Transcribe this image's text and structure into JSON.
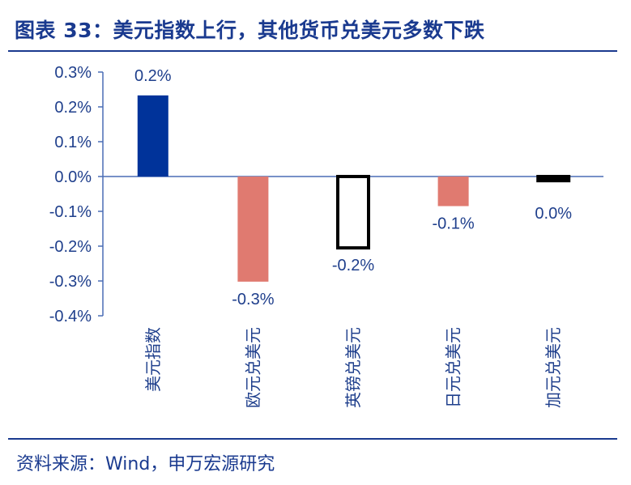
{
  "title": "图表 33：美元指数上行，其他货币兑美元多数下跌",
  "source": "资料来源：Wind，申万宏源研究",
  "chart_data": {
    "type": "bar",
    "title": "图表 33：美元指数上行，其他货币兑美元多数下跌",
    "categories": [
      "美元指数",
      "欧元兑美元",
      "英镑兑美元",
      "日元兑美元",
      "加元兑美元"
    ],
    "values": [
      0.233,
      -0.302,
      -0.205,
      -0.085,
      -0.012
    ],
    "data_labels": [
      "0.2%",
      "-0.3%",
      "-0.2%",
      "-0.1%",
      "0.0%"
    ],
    "bar_styles": [
      {
        "fill": "#00339a",
        "stroke": "none"
      },
      {
        "fill": "#e07a70",
        "stroke": "none"
      },
      {
        "fill": "#ffffff",
        "stroke": "#000000"
      },
      {
        "fill": "#e07a70",
        "stroke": "none"
      },
      {
        "fill": "#000000",
        "stroke": "#000000"
      }
    ],
    "ylim": [
      -0.4,
      0.3
    ],
    "yticks": [
      0.3,
      0.2,
      0.1,
      0.0,
      -0.1,
      -0.2,
      -0.3,
      -0.4
    ],
    "ytick_labels": [
      "0.3%",
      "0.2%",
      "0.1%",
      "0.0%",
      "-0.1%",
      "-0.2%",
      "-0.3%",
      "-0.4%"
    ],
    "xlabel": "",
    "ylabel": "",
    "grid": false,
    "legend": "none",
    "colors": {
      "axis": "#4a6db5",
      "text": "#1f3f8c"
    }
  }
}
